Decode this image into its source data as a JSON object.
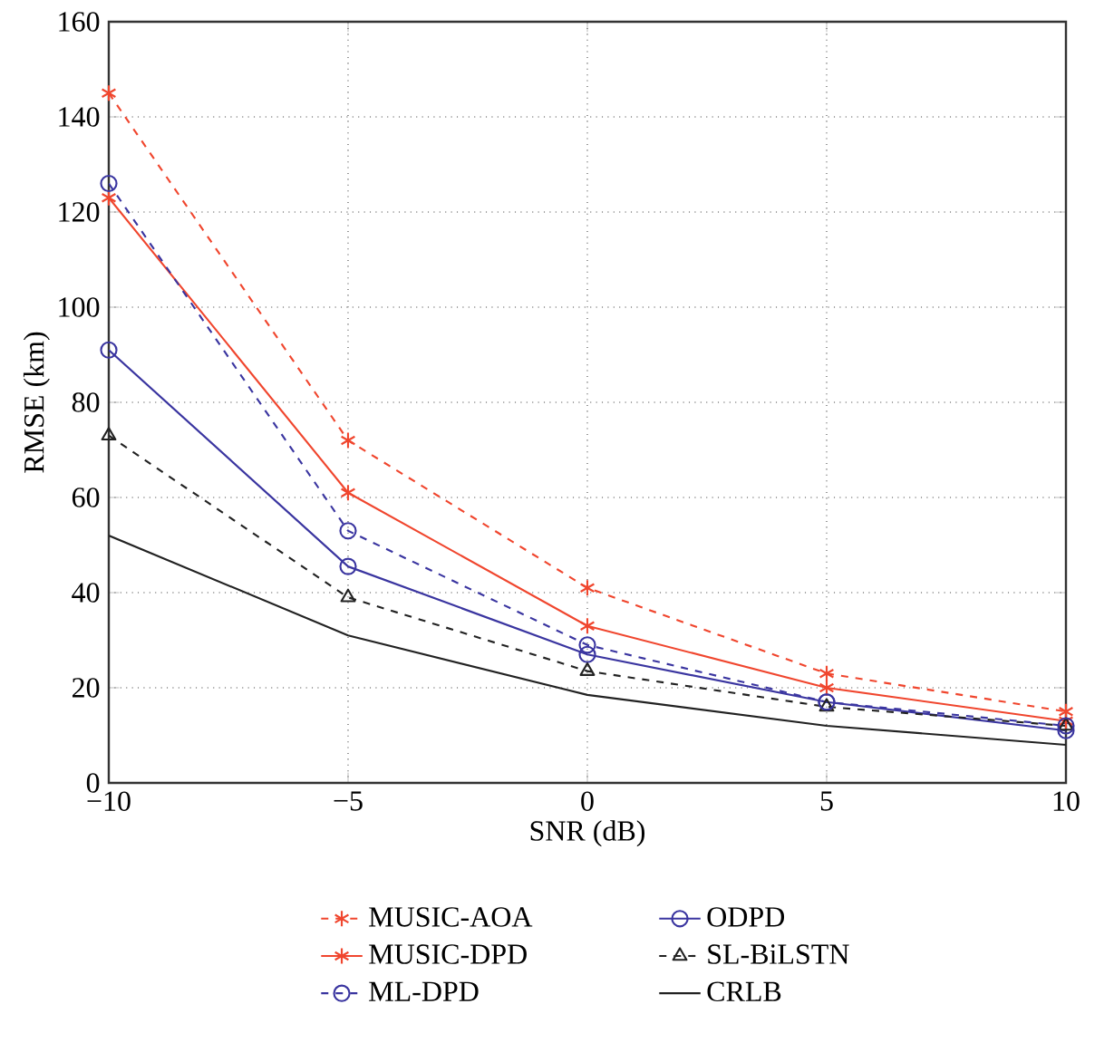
{
  "chart_data": {
    "type": "line",
    "xlabel": "SNR (dB)",
    "ylabel": "RMSE (km)",
    "x": [
      -10,
      -5,
      0,
      5,
      10
    ],
    "xlim": [
      -10,
      10
    ],
    "xticks": [
      {
        "value": -10,
        "label": "−10"
      },
      {
        "value": -5,
        "label": "−5"
      },
      0,
      5,
      10
    ],
    "ylim": [
      0,
      160
    ],
    "yticks": [
      0,
      20,
      40,
      60,
      80,
      100,
      120,
      140,
      160
    ],
    "grid": true,
    "legend": "bottom",
    "series": [
      {
        "name": "MUSIC-AOA",
        "color": "#f0462e",
        "marker": "cross",
        "line_style": "dashed",
        "values": [
          145,
          72,
          41,
          23,
          15
        ]
      },
      {
        "name": "MUSIC-DPD",
        "color": "#f0462e",
        "marker": "cross",
        "line_style": "solid",
        "values": [
          123,
          61,
          33,
          20,
          13
        ]
      },
      {
        "name": "ML-DPD",
        "color": "#3a35a0",
        "marker": "circle",
        "line_style": "dashed",
        "values": [
          126,
          53,
          29,
          17,
          12
        ]
      },
      {
        "name": "ODPD",
        "color": "#3a35a0",
        "marker": "circle",
        "line_style": "solid",
        "values": [
          91,
          45.5,
          27,
          17,
          11
        ]
      },
      {
        "name": "SL-BiLSTN",
        "color": "#222222",
        "marker": "triangle",
        "line_style": "dashed",
        "values": [
          73,
          39,
          23.5,
          16,
          12
        ]
      },
      {
        "name": "CRLB",
        "color": "#222222",
        "marker": "none",
        "line_style": "solid",
        "values": [
          52,
          31,
          18.5,
          12,
          8
        ]
      }
    ]
  }
}
